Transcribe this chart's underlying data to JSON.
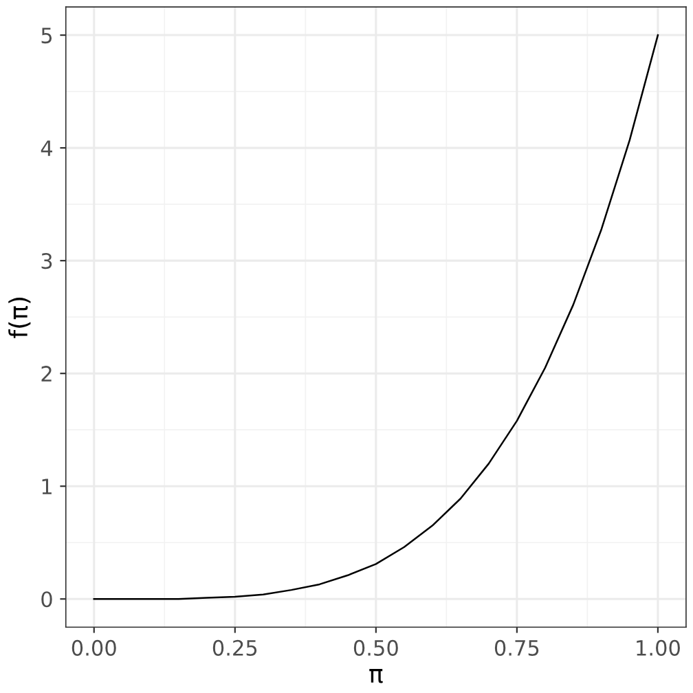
{
  "chart_data": {
    "type": "line",
    "xlabel": "π",
    "ylabel": "f(π)",
    "x": [
      0,
      0.05,
      0.1,
      0.15,
      0.2,
      0.25,
      0.3,
      0.35,
      0.4,
      0.45,
      0.5,
      0.55,
      0.6,
      0.65,
      0.7,
      0.75,
      0.8,
      0.85,
      0.9,
      0.95,
      1
    ],
    "series": [
      {
        "color": "#000000",
        "values": [
          0,
          0,
          0,
          0,
          0.01,
          0.02,
          0.04,
          0.08,
          0.13,
          0.21,
          0.31,
          0.46,
          0.65,
          0.89,
          1.2,
          1.58,
          2.05,
          2.61,
          3.28,
          4.07,
          5
        ]
      }
    ],
    "xlim": [
      -0.05,
      1.05
    ],
    "ylim": [
      -0.25,
      5.25
    ],
    "xticks": [
      {
        "value": 0,
        "label": "0.00"
      },
      {
        "value": 0.25,
        "label": "0.25"
      },
      {
        "value": 0.5,
        "label": "0.50"
      },
      {
        "value": 0.75,
        "label": "0.75"
      },
      {
        "value": 1,
        "label": "1.00"
      }
    ],
    "yticks": [
      0,
      1,
      2,
      3,
      4,
      5
    ],
    "grid": true,
    "marker": "none",
    "line_style": "solid"
  }
}
